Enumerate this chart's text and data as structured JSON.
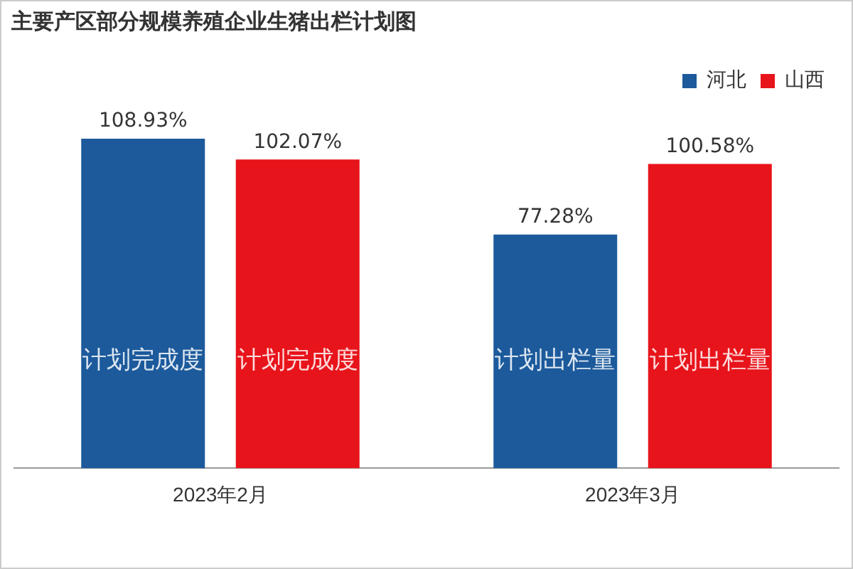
{
  "chart_data": {
    "type": "bar",
    "title": "主要产区部分规模养殖企业生猪出栏计划图",
    "categories": [
      "2023年2月",
      "2023年3月"
    ],
    "series": [
      {
        "name": "河北",
        "color": "#1c5a9c",
        "values": [
          108.93,
          77.28
        ],
        "value_labels": [
          "108.93%",
          "77.28%"
        ]
      },
      {
        "name": "山西",
        "color": "#e8141b",
        "values": [
          102.07,
          100.58
        ],
        "value_labels": [
          "102.07%",
          "100.58%"
        ]
      }
    ],
    "annotations": [
      "计划完成度",
      "计划完成度",
      "计划出栏量",
      "计划出栏量"
    ],
    "grid": false,
    "legend": "top right"
  }
}
